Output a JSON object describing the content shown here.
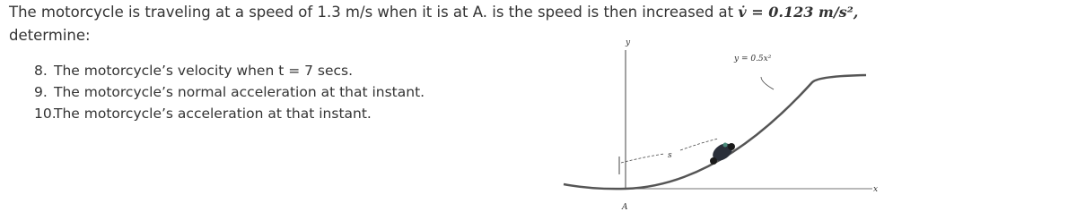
{
  "problem": {
    "intro": "The motorcycle is traveling at a speed of 1.3 m/s when it is at A. is the speed is then increased at",
    "formula": "v̇ = 0.123 m/s²,",
    "prompt": "determine:",
    "items": [
      {
        "number": "8.",
        "text": "The motorcycle’s velocity when t = 7 secs."
      },
      {
        "number": "9.",
        "text": "The motorcycle’s normal acceleration at that instant."
      },
      {
        "number": "10.",
        "text": "The motorcycle’s acceleration at that instant."
      }
    ]
  },
  "figure": {
    "y_axis": "y",
    "curve": "y = 0.5x²",
    "x_axis": "x",
    "path": "s",
    "point": "A"
  }
}
